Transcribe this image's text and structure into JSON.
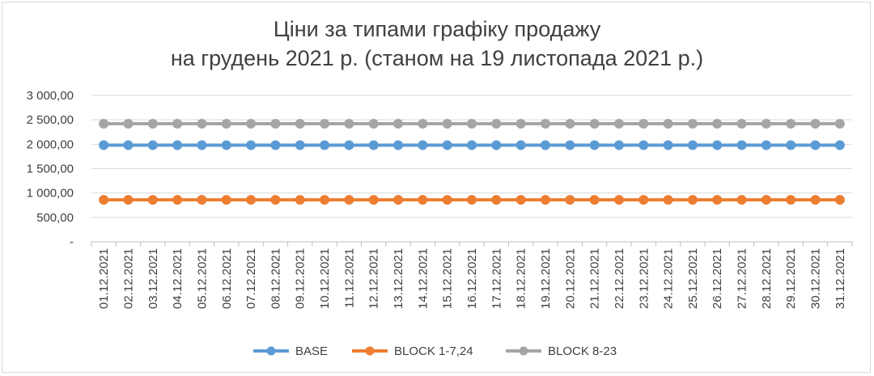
{
  "chart_data": {
    "type": "line",
    "title_line1": "Ціни за типами графіку продажу",
    "title_line2": "на грудень 2021 р. (станом на 19 листопада 2021 р.)",
    "ylim": [
      0,
      3000
    ],
    "y_ticks": [
      {
        "value": 0,
        "label": "-"
      },
      {
        "value": 500,
        "label": "500,00"
      },
      {
        "value": 1000,
        "label": "1 000,00"
      },
      {
        "value": 1500,
        "label": "1 500,00"
      },
      {
        "value": 2000,
        "label": "2 000,00"
      },
      {
        "value": 2500,
        "label": "2 500,00"
      },
      {
        "value": 3000,
        "label": "3 000,00"
      }
    ],
    "categories": [
      "01.12.2021",
      "02.12.2021",
      "03.12.2021",
      "04.12.2021",
      "05.12.2021",
      "06.12.2021",
      "07.12.2021",
      "08.12.2021",
      "09.12.2021",
      "10.12.2021",
      "11.12.2021",
      "12.12.2021",
      "13.12.2021",
      "14.12.2021",
      "15.12.2021",
      "16.12.2021",
      "17.12.2021",
      "18.12.2021",
      "19.12.2021",
      "20.12.2021",
      "21.12.2021",
      "22.12.2021",
      "23.12.2021",
      "24.12.2021",
      "25.12.2021",
      "26.12.2021",
      "27.12.2021",
      "28.12.2021",
      "29.12.2021",
      "30.12.2021",
      "31.12.2021"
    ],
    "series": [
      {
        "name": "BASE",
        "color": "#5b9bd5",
        "values": [
          1980,
          1980,
          1980,
          1980,
          1980,
          1980,
          1980,
          1980,
          1980,
          1980,
          1980,
          1980,
          1980,
          1980,
          1980,
          1980,
          1980,
          1980,
          1980,
          1980,
          1980,
          1980,
          1980,
          1980,
          1980,
          1980,
          1980,
          1980,
          1980,
          1980,
          1980
        ]
      },
      {
        "name": "BLOCK 1-7,24",
        "color": "#ed7d31",
        "values": [
          860,
          860,
          860,
          860,
          860,
          860,
          860,
          860,
          860,
          860,
          860,
          860,
          860,
          860,
          860,
          860,
          860,
          860,
          860,
          860,
          860,
          860,
          860,
          860,
          860,
          860,
          860,
          860,
          860,
          860,
          860
        ]
      },
      {
        "name": "BLOCK 8-23",
        "color": "#a5a5a5",
        "values": [
          2420,
          2420,
          2420,
          2420,
          2420,
          2420,
          2420,
          2420,
          2420,
          2420,
          2420,
          2420,
          2420,
          2420,
          2420,
          2420,
          2420,
          2420,
          2420,
          2420,
          2420,
          2420,
          2420,
          2420,
          2420,
          2420,
          2420,
          2420,
          2420,
          2420,
          2420
        ]
      }
    ],
    "grid": true,
    "legend": "bottom"
  }
}
